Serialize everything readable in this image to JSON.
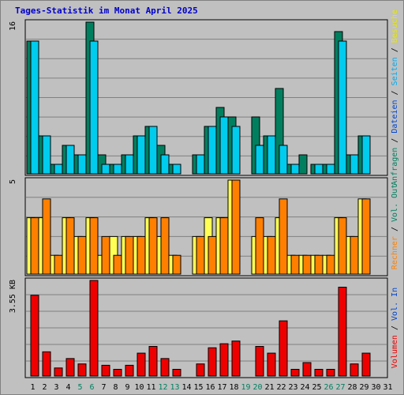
{
  "chart_data": {
    "type": "bar",
    "title": "Tages-Statistik im Monat April 2025",
    "days": [
      "1",
      "2",
      "3",
      "4",
      "5",
      "6",
      "7",
      "8",
      "9",
      "10",
      "11",
      "12",
      "13",
      "14",
      "15",
      "16",
      "17",
      "18",
      "19",
      "20",
      "21",
      "22",
      "23",
      "24",
      "25",
      "26",
      "27",
      "28",
      "29",
      "30",
      "31"
    ],
    "weekend_days": [
      "5",
      "6",
      "12",
      "13",
      "19",
      "20",
      "26",
      "27"
    ],
    "panels": [
      {
        "name": "top",
        "ymax_label": "16",
        "ymax": 16,
        "series": [
          {
            "name": "Anfragen",
            "color": "#007f5f",
            "values": [
              14,
              4,
              1,
              3,
              2,
              16,
              2,
              1,
              2,
              4,
              5,
              3,
              1,
              0,
              2,
              5,
              7,
              6,
              0,
              6,
              4,
              9,
              1,
              2,
              1,
              1,
              15,
              2,
              4,
              0,
              0
            ]
          },
          {
            "name": "Dateien",
            "color": "#00ccee",
            "values": [
              14,
              4,
              1,
              3,
              2,
              14,
              1,
              1,
              2,
              4,
              5,
              2,
              1,
              0,
              2,
              5,
              6,
              5,
              0,
              3,
              4,
              3,
              1,
              0,
              1,
              1,
              14,
              2,
              4,
              0,
              0
            ]
          }
        ],
        "side_labels": [
          {
            "text": "Anfragen",
            "color": "#007f5f"
          },
          {
            "text": "Dateien",
            "color": "#0044cc"
          },
          {
            "text": "Seiten",
            "color": "#00aaee"
          },
          {
            "text": "Besuche",
            "color": "#e8e800"
          }
        ]
      },
      {
        "name": "middle",
        "ymax_label": "5",
        "ymax": 5,
        "series": [
          {
            "name": "Besuche",
            "color": "#ffff55",
            "values": [
              3,
              3,
              1,
              3,
              2,
              3,
              1,
              2,
              2,
              2,
              3,
              2,
              1,
              0,
              2,
              3,
              3,
              5,
              0,
              2,
              2,
              3,
              1,
              1,
              1,
              1,
              3,
              2,
              4,
              0,
              0
            ]
          },
          {
            "name": "Rechner",
            "color": "#ff8000",
            "values": [
              3,
              4,
              1,
              3,
              2,
              3,
              2,
              1,
              2,
              2,
              3,
              3,
              1,
              0,
              2,
              2,
              3,
              5,
              0,
              3,
              2,
              4,
              1,
              1,
              1,
              1,
              3,
              2,
              4,
              0,
              0
            ]
          }
        ],
        "side_labels": [
          {
            "text": "Rechner",
            "color": "#ff8000"
          },
          {
            "text": "Vol. Out",
            "color": "#007f5f"
          }
        ]
      },
      {
        "name": "bottom",
        "ymax_label": "3.55 KB",
        "ymax": 3.55,
        "series": [
          {
            "name": "Volumen",
            "color": "#ee0000",
            "values": [
              3.0,
              0.9,
              0.3,
              0.65,
              0.45,
              3.55,
              0.4,
              0.25,
              0.4,
              0.85,
              1.1,
              0.65,
              0.25,
              0,
              0.45,
              1.05,
              1.2,
              1.3,
              0,
              1.1,
              0.85,
              2.05,
              0.25,
              0.5,
              0.25,
              0.25,
              3.3,
              0.45,
              0.85,
              0,
              0
            ]
          }
        ],
        "side_labels": [
          {
            "text": "Volumen",
            "color": "#ee0000"
          },
          {
            "text": "Vol. In",
            "color": "#0044cc"
          }
        ]
      }
    ]
  }
}
